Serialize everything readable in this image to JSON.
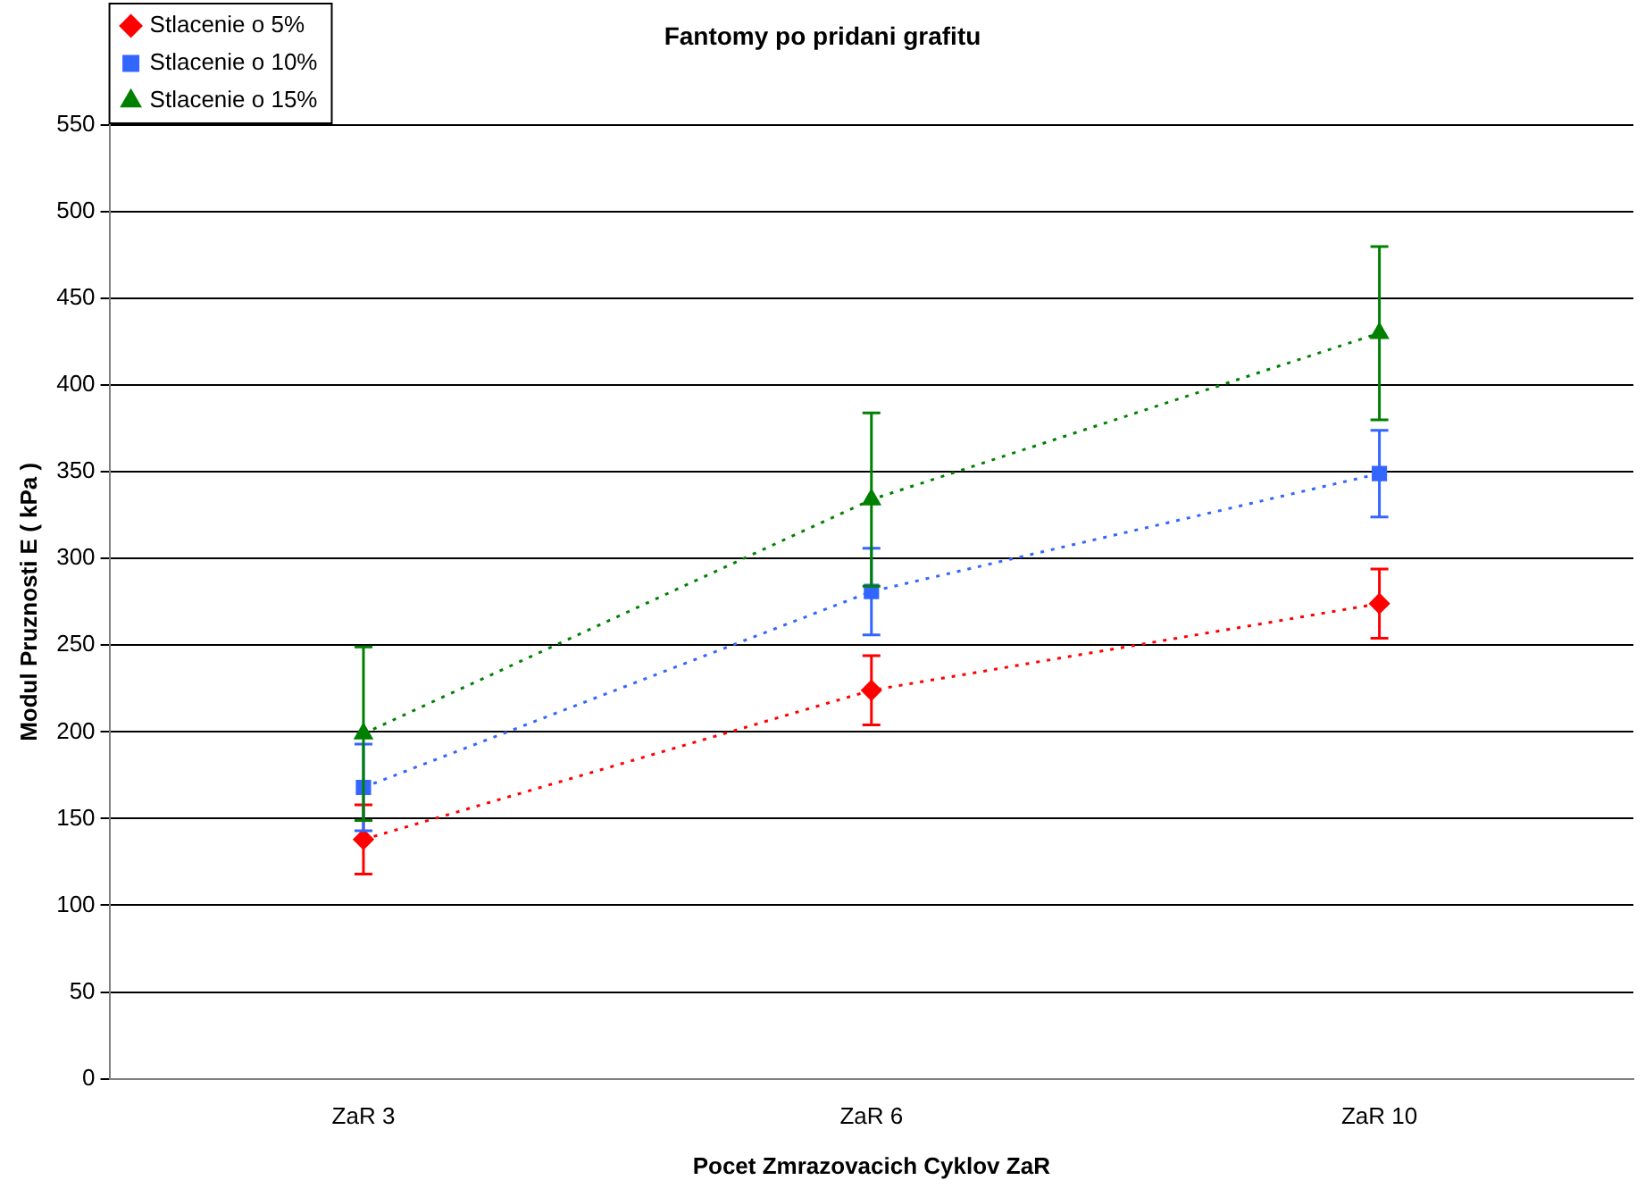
{
  "chart_data": {
    "type": "line",
    "title": "Fantomy po pridani grafitu",
    "xlabel": "Pocet Zmrazovacich Cyklov ZaR",
    "ylabel": "Modul Pruznosti E ( kPa )",
    "categories": [
      "ZaR 3",
      "ZaR 6",
      "ZaR 10"
    ],
    "series": [
      {
        "name": "Stlacenie o 5%",
        "color": "#ff0000",
        "marker": "diamond",
        "values": [
          138,
          224,
          274
        ],
        "errors": [
          20,
          20,
          20
        ]
      },
      {
        "name": "Stlacenie o 10%",
        "color": "#3366ff",
        "marker": "square",
        "values": [
          168,
          281,
          349
        ],
        "errors": [
          25,
          25,
          25
        ]
      },
      {
        "name": "Stlacenie o 15%",
        "color": "#008000",
        "marker": "triangle",
        "values": [
          199,
          334,
          430
        ],
        "errors": [
          50,
          50,
          50
        ]
      }
    ],
    "ylim": [
      0,
      550
    ],
    "yticks": [
      0,
      50,
      100,
      150,
      200,
      250,
      300,
      350,
      400,
      450,
      500,
      550
    ],
    "grid": "y",
    "legend": "top left",
    "line_style": "dotted"
  }
}
